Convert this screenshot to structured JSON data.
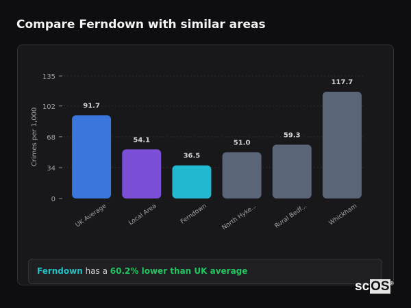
{
  "header": {
    "title": "Compare Ferndown with similar areas"
  },
  "chart_data": {
    "type": "bar",
    "categories": [
      "UK Average",
      "Local Area",
      "Ferndown",
      "North Hyke...",
      "Rural Bedf...",
      "Whickham"
    ],
    "values": [
      91.7,
      54.1,
      36.5,
      51.0,
      59.3,
      117.7
    ],
    "value_labels": [
      "91.7",
      "54.1",
      "36.5",
      "51.0",
      "59.3",
      "117.7"
    ],
    "colors": [
      "#3b76dc",
      "#7b4fd6",
      "#22b8d0",
      "#5a6578",
      "#5a6578",
      "#5a6578"
    ],
    "ylabel": "Crimes per 1,000",
    "yticks": [
      0,
      34,
      68,
      102,
      135
    ],
    "ylim": [
      0,
      135
    ],
    "grid": true
  },
  "footer": {
    "area": "Ferndown",
    "middle": " has a ",
    "comparison": "60.2% lower than UK average"
  },
  "logo": {
    "text_a": "sc",
    "text_b": "OS"
  }
}
